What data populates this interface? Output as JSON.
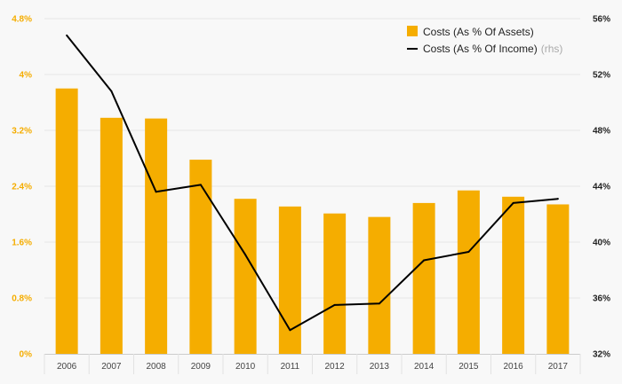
{
  "chart_data": {
    "type": "bar+line",
    "categories": [
      "2006",
      "2007",
      "2008",
      "2009",
      "2010",
      "2011",
      "2012",
      "2013",
      "2014",
      "2015",
      "2016",
      "2017"
    ],
    "series": [
      {
        "name": "Costs (As % Of Assets)",
        "type": "bar",
        "axis": "left",
        "color": "#f5ad00",
        "values": [
          3.8,
          3.38,
          3.37,
          2.78,
          2.22,
          2.11,
          2.01,
          1.96,
          2.16,
          2.34,
          2.25,
          2.14
        ]
      },
      {
        "name": "Costs (As % Of Income)",
        "suffix": "(rhs)",
        "type": "line",
        "axis": "right",
        "color": "#000000",
        "values": [
          54.8,
          50.8,
          43.6,
          44.1,
          39.1,
          33.7,
          35.5,
          35.6,
          38.7,
          39.3,
          42.8,
          43.1
        ]
      }
    ],
    "y_left": {
      "min": 0,
      "max": 4.8,
      "ticks": [
        0,
        0.8,
        1.6,
        2.4,
        3.2,
        4,
        4.8
      ],
      "tick_labels": [
        "0%",
        "0.8%",
        "1.6%",
        "2.4%",
        "3.2%",
        "4%",
        "4.8%"
      ],
      "color": "#f5ad00"
    },
    "y_right": {
      "min": 32,
      "max": 56,
      "ticks": [
        32,
        36,
        40,
        44,
        48,
        52,
        56
      ],
      "tick_labels": [
        "32%",
        "36%",
        "40%",
        "44%",
        "48%",
        "52%",
        "56%"
      ],
      "color": "#222222"
    },
    "grid": true,
    "legend_position": "top-right"
  }
}
